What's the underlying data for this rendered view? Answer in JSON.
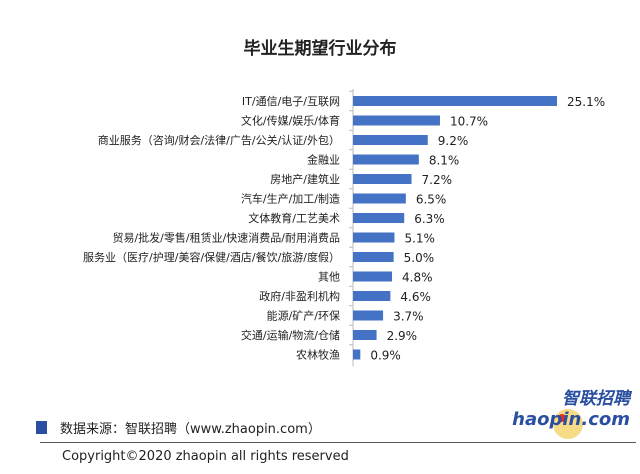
{
  "chart_data": {
    "type": "bar",
    "orientation": "horizontal",
    "title": "毕业生期望行业分布",
    "categories": [
      "IT/通信/电子/互联网",
      "文化/传媒/娱乐/体育",
      "商业服务（咨询/财会/法律/广告/公关/认证/外包）",
      "金融业",
      "房地产/建筑业",
      "汽车/生产/加工/制造",
      "文体教育/工艺美术",
      "贸易/批发/零售/租赁业/快速消费品/耐用消费品",
      "服务业（医疗/护理/美容/保健/酒店/餐饮/旅游/度假）",
      "其他",
      "政府/非盈利机构",
      "能源/矿产/环保",
      "交通/运输/物流/仓储",
      "农林牧渔"
    ],
    "values": [
      25.1,
      10.7,
      9.2,
      8.1,
      7.2,
      6.5,
      6.3,
      5.1,
      5.0,
      4.8,
      4.6,
      3.7,
      2.9,
      0.9
    ],
    "value_labels": [
      "25.1%",
      "10.7%",
      "9.2%",
      "8.1%",
      "7.2%",
      "6.5%",
      "6.3%",
      "5.1%",
      "5.0%",
      "4.8%",
      "4.6%",
      "3.7%",
      "2.9%",
      "0.9%"
    ],
    "unit": "%",
    "xlim": [
      0,
      25.1
    ],
    "grid": false,
    "bar_color": "#4472c4"
  },
  "footer": {
    "source": "数据来源：智联招聘（www.zhaopin.com）",
    "copyright": "Copyright©2020  zhaopin all rights reserved",
    "source_mark_color": "#2a4fa0"
  },
  "logo": {
    "text_cn": "智联招聘",
    "text_en": "zhaopin.com",
    "color": "#2a4fa0",
    "dot_color": "#f5b800"
  }
}
